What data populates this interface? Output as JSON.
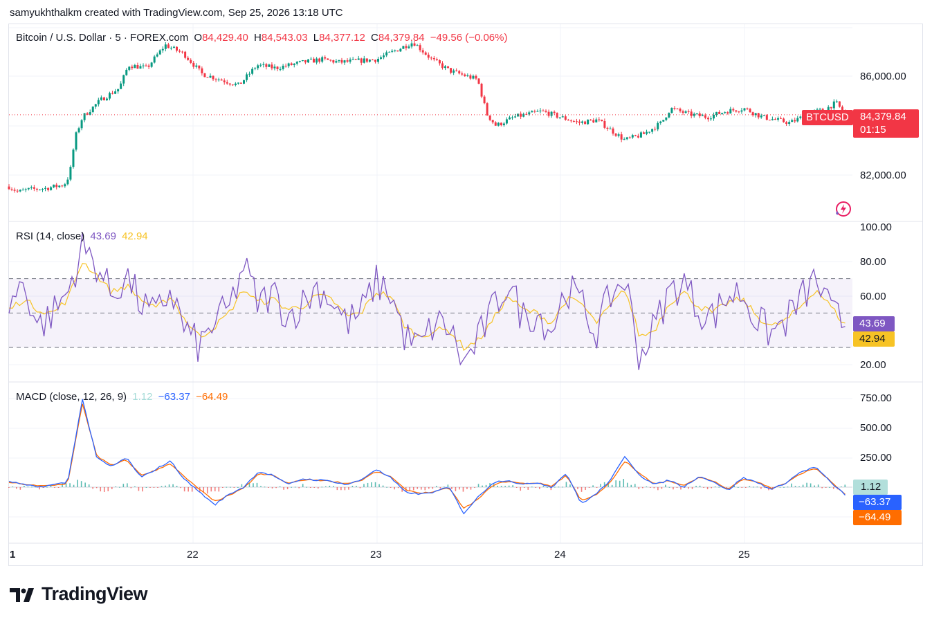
{
  "header": {
    "credit": "samyukhthalkm created with TradingView.com, Sep 25, 2026 13:18 UTC"
  },
  "price_legend": {
    "symbol": "Bitcoin / U.S. Dollar · 5 · FOREX.com",
    "o_label": "O",
    "o": "84,429.40",
    "h_label": "H",
    "h": "84,543.03",
    "l_label": "L",
    "l": "84,377.12",
    "c_label": "C",
    "c": "84,379.84",
    "change": "−49.56 (−0.06%)"
  },
  "rsi_legend": {
    "title": "RSI (14, close)",
    "rsi": "43.69",
    "ma": "42.94"
  },
  "macd_legend": {
    "title": "MACD (close, 12, 26, 9)",
    "hist": "1.12",
    "macd": "−63.37",
    "signal": "−64.49"
  },
  "price_axis": [
    "86,000.00",
    "82,000.00"
  ],
  "rsi_axis": [
    "100.00",
    "80.00",
    "60.00",
    "20.00"
  ],
  "macd_axis": [
    "750.00",
    "500.00",
    "250.00"
  ],
  "x_axis": [
    "1",
    "22",
    "23",
    "24",
    "25"
  ],
  "tags": {
    "symbol": "BTCUSD",
    "price": "84,379.84",
    "countdown": "01:15",
    "rsi": "43.69",
    "rsi_ma": "42.94",
    "hist": "1.12",
    "macd": "−63.37",
    "signal": "−64.49"
  },
  "brand": "TradingView",
  "colors": {
    "up": "#089981",
    "down": "#f23645",
    "rsi": "#7e57c2",
    "rsi_ma": "#f7c325",
    "macd": "#2962ff",
    "signal": "#ff6d00",
    "hist_up": "#26a69a",
    "hist_down": "#ef5350"
  },
  "chart_data": [
    {
      "type": "candlestick",
      "title": "Bitcoin / U.S. Dollar · 5 · FOREX.com",
      "x_ticks": [
        "1",
        "22",
        "23",
        "24",
        "25"
      ],
      "ylim": [
        80800,
        87400
      ],
      "close_path": [
        {
          "x": 21.0,
          "y": 81890
        },
        {
          "x": 21.05,
          "y": 81700
        },
        {
          "x": 21.1,
          "y": 81780
        },
        {
          "x": 21.2,
          "y": 81830
        },
        {
          "x": 21.3,
          "y": 81950
        },
        {
          "x": 21.33,
          "y": 82300
        },
        {
          "x": 21.36,
          "y": 83600
        },
        {
          "x": 21.4,
          "y": 84300
        },
        {
          "x": 21.45,
          "y": 84600
        },
        {
          "x": 21.5,
          "y": 84900
        },
        {
          "x": 21.6,
          "y": 85300
        },
        {
          "x": 21.65,
          "y": 86100
        },
        {
          "x": 21.75,
          "y": 86000
        },
        {
          "x": 21.85,
          "y": 86800
        },
        {
          "x": 21.95,
          "y": 86500
        },
        {
          "x": 22.05,
          "y": 85800
        },
        {
          "x": 22.15,
          "y": 85600
        },
        {
          "x": 22.25,
          "y": 85400
        },
        {
          "x": 22.35,
          "y": 86100
        },
        {
          "x": 22.45,
          "y": 86000
        },
        {
          "x": 22.6,
          "y": 86200
        },
        {
          "x": 22.7,
          "y": 86300
        },
        {
          "x": 22.8,
          "y": 86200
        },
        {
          "x": 23.0,
          "y": 86300
        },
        {
          "x": 23.1,
          "y": 86600
        },
        {
          "x": 23.2,
          "y": 86900
        },
        {
          "x": 23.3,
          "y": 86300
        },
        {
          "x": 23.4,
          "y": 85900
        },
        {
          "x": 23.55,
          "y": 85600
        },
        {
          "x": 23.6,
          "y": 84400
        },
        {
          "x": 23.65,
          "y": 84000
        },
        {
          "x": 23.75,
          "y": 84300
        },
        {
          "x": 23.9,
          "y": 84500
        },
        {
          "x": 24.0,
          "y": 84300
        },
        {
          "x": 24.1,
          "y": 84100
        },
        {
          "x": 24.2,
          "y": 84200
        },
        {
          "x": 24.35,
          "y": 83500
        },
        {
          "x": 24.45,
          "y": 83700
        },
        {
          "x": 24.55,
          "y": 84100
        },
        {
          "x": 24.6,
          "y": 84600
        },
        {
          "x": 24.7,
          "y": 84400
        },
        {
          "x": 24.8,
          "y": 84300
        },
        {
          "x": 24.9,
          "y": 84500
        },
        {
          "x": 25.0,
          "y": 84600
        },
        {
          "x": 25.1,
          "y": 84300
        },
        {
          "x": 25.25,
          "y": 84100
        },
        {
          "x": 25.35,
          "y": 84400
        },
        {
          "x": 25.45,
          "y": 84600
        },
        {
          "x": 25.5,
          "y": 84800
        },
        {
          "x": 25.55,
          "y": 84380
        }
      ],
      "last_price": 84379.84
    },
    {
      "type": "line",
      "title": "RSI (14, close)",
      "ylim": [
        10,
        100
      ],
      "bands": {
        "upper": 70,
        "middle": 50,
        "lower": 30
      },
      "series": [
        {
          "name": "RSI",
          "values": [
            55,
            68,
            42,
            50,
            62,
            88,
            78,
            60,
            72,
            55,
            48,
            64,
            40,
            30,
            45,
            52,
            78,
            55,
            62,
            48,
            55,
            65,
            58,
            44,
            50,
            68,
            62,
            36,
            30,
            44,
            42,
            20,
            35,
            52,
            68,
            48,
            50,
            40,
            65,
            56,
            38,
            60,
            70,
            24,
            42,
            62,
            68,
            52,
            48,
            60,
            62,
            45,
            38,
            46,
            58,
            70,
            50,
            44
          ]
        },
        {
          "name": "MA",
          "values": [
            52,
            58,
            52,
            50,
            58,
            80,
            72,
            62,
            66,
            58,
            52,
            60,
            46,
            36,
            42,
            50,
            64,
            56,
            58,
            52,
            54,
            60,
            58,
            48,
            50,
            62,
            60,
            42,
            36,
            40,
            40,
            30,
            34,
            46,
            60,
            52,
            50,
            44,
            58,
            56,
            44,
            54,
            64,
            36,
            40,
            56,
            62,
            54,
            50,
            56,
            58,
            48,
            42,
            46,
            54,
            64,
            54,
            43
          ]
        }
      ],
      "last": {
        "RSI": 43.69,
        "MA": 42.94
      }
    },
    {
      "type": "line",
      "title": "MACD (close, 12, 26, 9)",
      "ylim": [
        -150,
        800
      ],
      "series": [
        {
          "name": "MACD",
          "values": [
            50,
            20,
            0,
            20,
            40,
            740,
            240,
            170,
            250,
            80,
            150,
            220,
            60,
            -40,
            -150,
            -60,
            0,
            130,
            100,
            20,
            70,
            60,
            50,
            20,
            60,
            150,
            80,
            -40,
            -60,
            -40,
            0,
            -220,
            -80,
            40,
            60,
            20,
            40,
            0,
            120,
            -140,
            -60,
            60,
            260,
            100,
            20,
            60,
            0,
            90,
            50,
            -30,
            80,
            40,
            -20,
            40,
            130,
            170,
            40,
            -63
          ]
        },
        {
          "name": "Signal",
          "values": [
            40,
            25,
            10,
            15,
            30,
            700,
            260,
            180,
            230,
            100,
            140,
            200,
            80,
            -20,
            -120,
            -70,
            -10,
            110,
            100,
            30,
            60,
            60,
            50,
            30,
            55,
            130,
            90,
            -20,
            -50,
            -40,
            -5,
            -180,
            -100,
            20,
            50,
            30,
            35,
            10,
            100,
            -110,
            -70,
            40,
            220,
            110,
            30,
            55,
            10,
            80,
            55,
            -20,
            70,
            45,
            -10,
            35,
            115,
            160,
            50,
            -64
          ]
        }
      ],
      "last": {
        "Histogram": 1.12,
        "MACD": -63.37,
        "Signal": -64.49
      }
    }
  ]
}
